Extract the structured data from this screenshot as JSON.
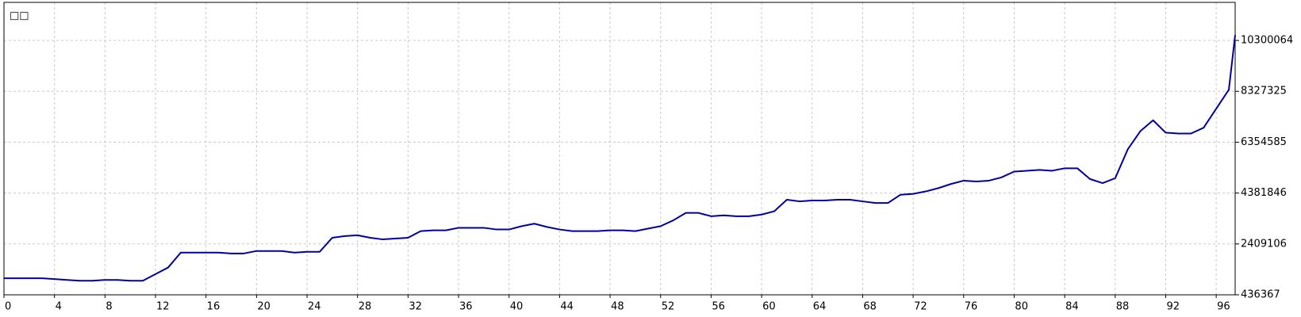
{
  "chart_data": {
    "type": "line",
    "title": "□□",
    "x": [
      0,
      1,
      2,
      3,
      4,
      5,
      6,
      7,
      8,
      9,
      10,
      11,
      12,
      13,
      14,
      15,
      16,
      17,
      18,
      19,
      20,
      21,
      22,
      23,
      24,
      25,
      26,
      27,
      28,
      29,
      30,
      31,
      32,
      33,
      34,
      35,
      36,
      37,
      38,
      39,
      40,
      41,
      42,
      43,
      44,
      45,
      46,
      47,
      48,
      49,
      50,
      51,
      52,
      53,
      54,
      55,
      56,
      57,
      58,
      59,
      60,
      61,
      62,
      63,
      64,
      65,
      66,
      67,
      68,
      69,
      70,
      71,
      72,
      73,
      74,
      75,
      76,
      77,
      78,
      79,
      80,
      81,
      82,
      83,
      84,
      85,
      86,
      87,
      88,
      89,
      90,
      91,
      92,
      93,
      94,
      95,
      96,
      97,
      97.5
    ],
    "values": [
      1078000,
      1078000,
      1078000,
      1078000,
      1046000,
      1014000,
      982000,
      982000,
      1014000,
      1014000,
      982000,
      982000,
      1238000,
      1495000,
      2072000,
      2072000,
      2072000,
      2072000,
      2040000,
      2040000,
      2136000,
      2136000,
      2136000,
      2072000,
      2104000,
      2104000,
      2650000,
      2714000,
      2746000,
      2650000,
      2586000,
      2618000,
      2650000,
      2906000,
      2938000,
      2938000,
      3035000,
      3035000,
      3035000,
      2970000,
      2970000,
      3099000,
      3195000,
      3067000,
      2970000,
      2906000,
      2906000,
      2906000,
      2938000,
      2938000,
      2906000,
      3002000,
      3099000,
      3323000,
      3612000,
      3612000,
      3484000,
      3516000,
      3484000,
      3484000,
      3548000,
      3676000,
      4125000,
      4061000,
      4093000,
      4093000,
      4125000,
      4125000,
      4061000,
      3997000,
      3997000,
      4318000,
      4350000,
      4446000,
      4574000,
      4735000,
      4863000,
      4831000,
      4863000,
      4991000,
      5216000,
      5248000,
      5280000,
      5248000,
      5344000,
      5344000,
      4927000,
      4767000,
      4959000,
      6082000,
      6788000,
      7205000,
      6724000,
      6691000,
      6691000,
      6916000,
      7654000,
      8391000,
      10508000
    ],
    "color": "#0000a0",
    "xlim": [
      0,
      97.5
    ],
    "xticks": [
      0,
      4,
      8,
      12,
      16,
      20,
      24,
      28,
      32,
      36,
      40,
      44,
      48,
      52,
      56,
      60,
      64,
      68,
      72,
      76,
      80,
      84,
      88,
      92,
      96
    ],
    "ylim": [
      436367,
      11777000
    ],
    "yticks": [
      436367,
      2409106,
      4381846,
      6354585,
      8327325,
      10300064
    ],
    "grid": true
  }
}
